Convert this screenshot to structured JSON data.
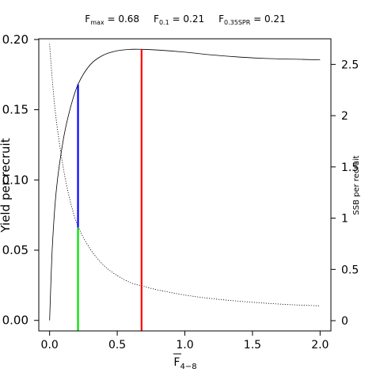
{
  "chart_data": {
    "type": "line",
    "title_parts": [
      {
        "base": "F",
        "sub": "max",
        "value": " = 0.68"
      },
      {
        "base": "F",
        "sub": "0.1",
        "value": " = 0.21"
      },
      {
        "base": "F",
        "sub": "0.35SPR",
        "value": " = 0.21"
      }
    ],
    "xlabel": {
      "base": "F",
      "sub": "4−8",
      "overline": true
    },
    "ylabel_left": "Yield per recruit",
    "ylabel_right": "SSB per recruit",
    "xlim": [
      -0.08,
      2.08
    ],
    "ylim_left": [
      -0.0075,
      0.2005
    ],
    "ylim_right": [
      -0.1,
      2.75
    ],
    "x_ticks": [
      0.0,
      0.5,
      1.0,
      1.5,
      2.0
    ],
    "x_tick_labels": [
      "0.0",
      "0.5",
      "1.0",
      "1.5",
      "2.0"
    ],
    "y_left_ticks": [
      0.0,
      0.05,
      0.1,
      0.15,
      0.2
    ],
    "y_left_tick_labels": [
      "0.00",
      "0.05",
      "0.10",
      "0.15",
      "0.20"
    ],
    "y_right_ticks": [
      0,
      0.5,
      1,
      1.5,
      2,
      2.5
    ],
    "y_right_tick_labels": [
      "0",
      "0.5",
      "1",
      "1.5",
      "2",
      "2.5"
    ],
    "series": [
      {
        "axis": "left",
        "style": "solid",
        "color": "#000000",
        "x": [
          0.0,
          0.02,
          0.05,
          0.1,
          0.15,
          0.21,
          0.3,
          0.4,
          0.5,
          0.6,
          0.68,
          0.8,
          1.0,
          1.2,
          1.4,
          1.6,
          1.8,
          2.0
        ],
        "y": [
          0.0,
          0.052,
          0.093,
          0.128,
          0.15,
          0.168,
          0.182,
          0.189,
          0.192,
          0.193,
          0.193,
          0.1925,
          0.191,
          0.189,
          0.1875,
          0.1865,
          0.186,
          0.1855
        ]
      },
      {
        "axis": "right",
        "style": "dotted",
        "color": "#000000",
        "x": [
          0.0,
          0.02,
          0.05,
          0.1,
          0.15,
          0.21,
          0.3,
          0.4,
          0.5,
          0.6,
          0.68,
          0.8,
          1.0,
          1.2,
          1.4,
          1.6,
          1.8,
          2.0
        ],
        "y": [
          2.7,
          2.35,
          1.95,
          1.5,
          1.18,
          0.92,
          0.7,
          0.54,
          0.44,
          0.37,
          0.34,
          0.3,
          0.25,
          0.215,
          0.19,
          0.17,
          0.155,
          0.145
        ]
      }
    ],
    "reference_lines": [
      {
        "color": "#0000ff",
        "axis": "left",
        "x": 0.21,
        "y_from": 0.066,
        "y_to": 0.168
      },
      {
        "color": "#00dd00",
        "axis": "left",
        "x": 0.21,
        "y_from": -0.0075,
        "y_to": 0.066
      },
      {
        "color": "#ff0000",
        "axis": "left",
        "x": 0.68,
        "y_from": -0.0075,
        "y_to": 0.193
      }
    ]
  }
}
